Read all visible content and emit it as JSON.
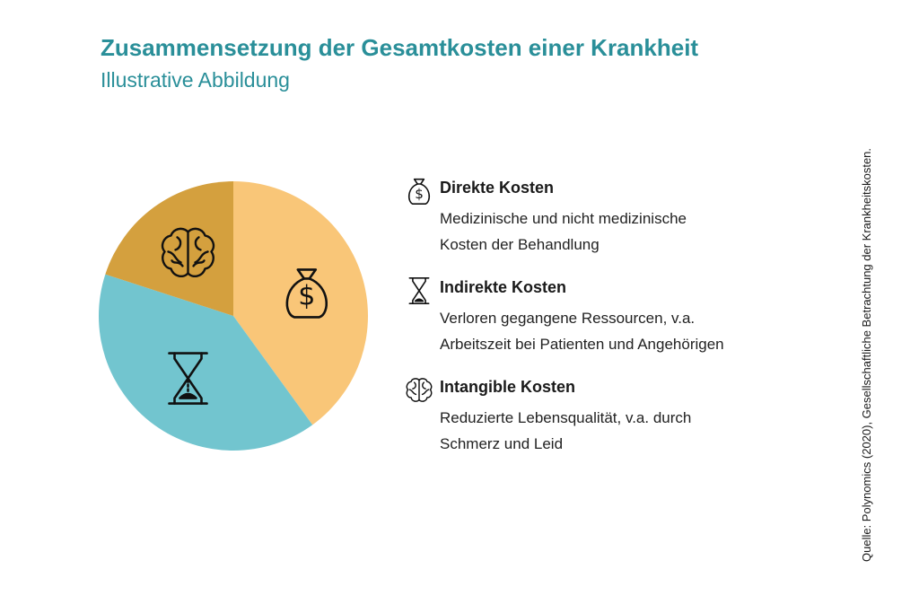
{
  "title": "Zusammensetzung der Gesamtkosten einer Krankheit",
  "subtitle": "Illustrative Abbildung",
  "source": "Quelle: Polynomics (2020), Gesellschaftliche Betrachtung der Krankheitskosten.",
  "legend": [
    {
      "name": "Direkte Kosten",
      "desc_line1": "Medizinische und nicht medizinische",
      "desc_line2": "Kosten der Behandlung",
      "icon": "money-bag-icon"
    },
    {
      "name": "Indirekte Kosten",
      "desc_line1": "Verloren gegangene Ressourcen, v.a.",
      "desc_line2": "Arbeitszeit bei Patienten und Angehörigen",
      "icon": "hourglass-icon"
    },
    {
      "name": "Intangible Kosten",
      "desc_line1": "Reduzierte Lebensqualität, v.a. durch",
      "desc_line2": "Schmerz und Leid",
      "icon": "brain-icon"
    }
  ],
  "colors": {
    "title": "#2a8f99",
    "direkte": "#f9c678",
    "indirekte": "#72c5cf",
    "intangible": "#d4a03e"
  },
  "chart_data": {
    "type": "pie",
    "title": "",
    "slices": [
      {
        "label": "Direkte Kosten",
        "value": 40,
        "color": "#f9c678",
        "icon": "money-bag-icon"
      },
      {
        "label": "Indirekte Kosten",
        "value": 40,
        "color": "#72c5cf",
        "icon": "hourglass-icon"
      },
      {
        "label": "Intangible Kosten",
        "value": 20,
        "color": "#d4a03e",
        "icon": "brain-icon"
      }
    ]
  }
}
